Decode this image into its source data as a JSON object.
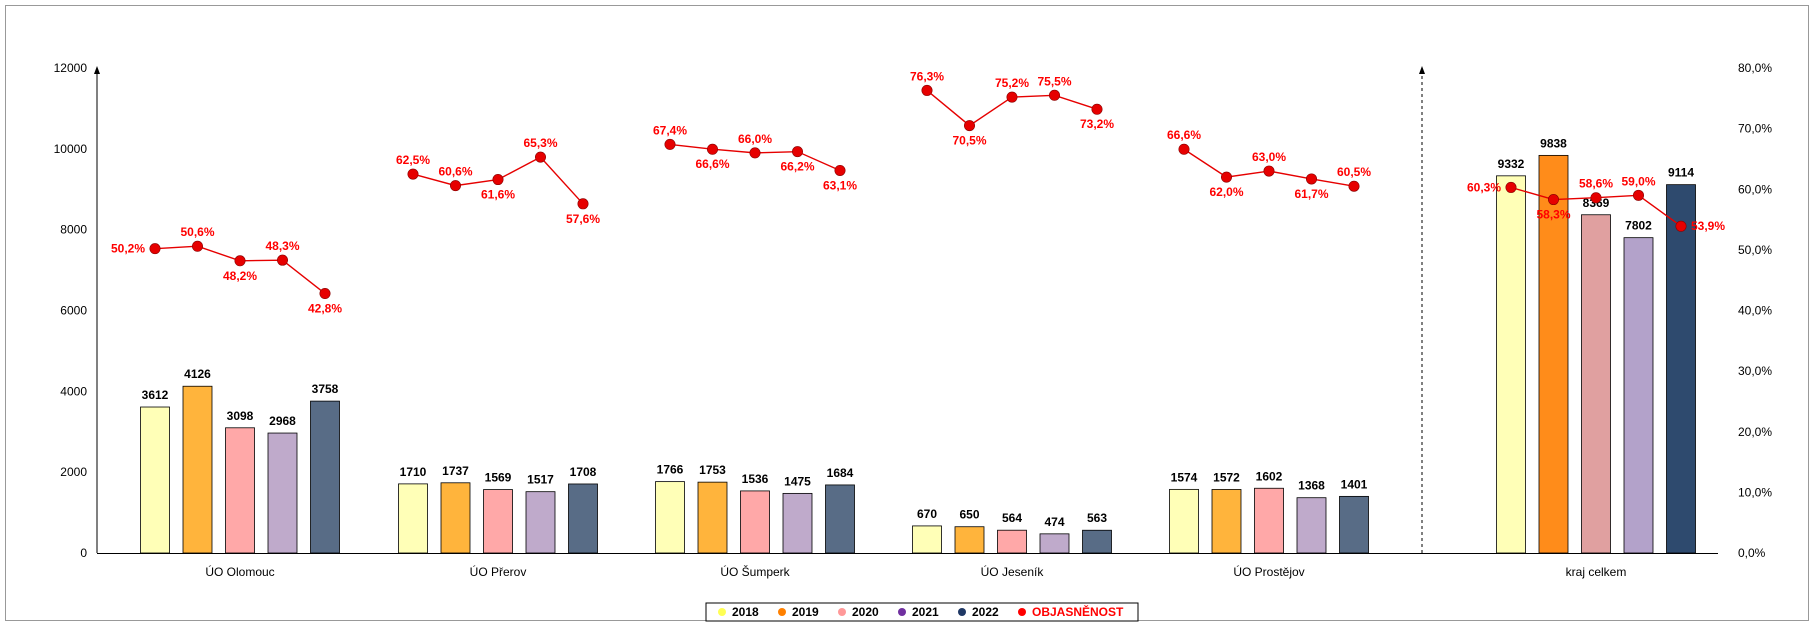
{
  "chart_data": {
    "type": "bar",
    "categories": [
      "ÚO Olomouc",
      "ÚO Přerov",
      "ÚO Šumperk",
      "ÚO Jeseník",
      "ÚO Prostějov",
      "kraj celkem"
    ],
    "series": [
      {
        "name": "2018",
        "values": [
          3612,
          1710,
          1766,
          670,
          1574,
          9332
        ],
        "labels": [
          "3612",
          "1710",
          "1766",
          "670",
          "1574",
          "9332"
        ]
      },
      {
        "name": "2019",
        "values": [
          4126,
          1737,
          1753,
          650,
          1572,
          9838
        ],
        "labels": [
          "4126",
          "1737",
          "1753",
          "650",
          "1572",
          "9838"
        ]
      },
      {
        "name": "2020",
        "values": [
          3098,
          1569,
          1536,
          564,
          1602,
          8369
        ],
        "labels": [
          "3098",
          "1569",
          "1536",
          "564",
          "1602",
          "8369"
        ]
      },
      {
        "name": "2021",
        "values": [
          2968,
          1517,
          1475,
          474,
          1368,
          7802
        ],
        "labels": [
          "2968",
          "1517",
          "1475",
          "474",
          "1368",
          "7802"
        ]
      },
      {
        "name": "2022",
        "values": [
          3758,
          1708,
          1684,
          563,
          1401,
          9114
        ],
        "labels": [
          "3758",
          "1708",
          "1684",
          "563",
          "1401",
          "9114"
        ]
      }
    ],
    "line": {
      "name": "OBJASNĚNOST",
      "axis": "right",
      "values": [
        [
          50.2,
          50.6,
          48.2,
          48.3,
          42.8
        ],
        [
          62.5,
          60.6,
          61.6,
          65.3,
          57.6
        ],
        [
          67.4,
          66.6,
          66.0,
          66.2,
          63.1
        ],
        [
          76.3,
          70.5,
          75.2,
          75.5,
          73.2
        ],
        [
          66.6,
          62.0,
          63.0,
          61.7,
          60.5
        ],
        [
          60.3,
          58.3,
          58.6,
          59.0,
          53.9
        ]
      ],
      "labels": [
        [
          "50,2%",
          "50,6%",
          "48,2%",
          "48,3%",
          "42,8%"
        ],
        [
          "62,5%",
          "60,6%",
          "61,6%",
          "65,3%",
          "57,6%"
        ],
        [
          "67,4%",
          "66,6%",
          "66,0%",
          "66,2%",
          "63,1%"
        ],
        [
          "76,3%",
          "70,5%",
          "75,2%",
          "75,5%",
          "73,2%"
        ],
        [
          "66,6%",
          "62,0%",
          "63,0%",
          "61,7%",
          "60,5%"
        ],
        [
          "60,3%",
          "58,3%",
          "58,6%",
          "59,0%",
          "53,9%"
        ]
      ]
    },
    "y_left": {
      "ticks": [
        "0",
        "2000",
        "4000",
        "6000",
        "8000",
        "10000",
        "12000"
      ],
      "values": [
        0,
        2000,
        4000,
        6000,
        8000,
        10000,
        12000
      ],
      "ylim": [
        0,
        12000
      ]
    },
    "y_right": {
      "ticks": [
        "0,0%",
        "10,0%",
        "20,0%",
        "30,0%",
        "40,0%",
        "50,0%",
        "60,0%",
        "70,0%",
        "80,0%"
      ],
      "values": [
        0,
        10,
        20,
        30,
        40,
        50,
        60,
        70,
        80
      ],
      "ylim": [
        0,
        80
      ]
    },
    "legend": {
      "placement": "bottom",
      "items": [
        "2018",
        "2019",
        "2020",
        "2021",
        "2022",
        "OBJASNĚNOST"
      ]
    },
    "grid": false
  },
  "colors": {
    "regional_fill": [
      "#FFFFB7",
      "#FFB43C",
      "#FFA8A8",
      "#BFAACB",
      "#586C86"
    ],
    "total_fill": [
      "#FFFFB7",
      "#FF8C1A",
      "#E0A0A0",
      "#B3A2CA",
      "#2E4A6E"
    ],
    "legend_dot": [
      "#FFFF55",
      "#FF8000",
      "#FF9999",
      "#7030A0",
      "#1F3864",
      "#FF0000"
    ],
    "line": "#E60000",
    "label_red": "#FF0000"
  }
}
